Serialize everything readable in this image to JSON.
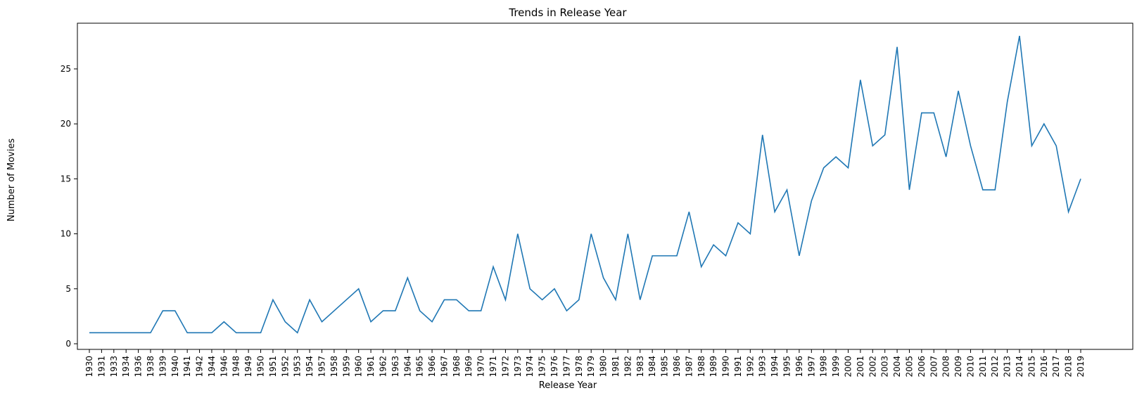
{
  "chart_data": {
    "type": "line",
    "title": "Trends in Release Year",
    "xlabel": "Release Year",
    "ylabel": "Number of Movies",
    "ylim": [
      0,
      29
    ],
    "yticks": [
      0,
      5,
      10,
      15,
      20,
      25
    ],
    "grid": false,
    "color": "#1f77b4",
    "categories": [
      "1930",
      "1931",
      "1933",
      "1934",
      "1936",
      "1938",
      "1939",
      "1940",
      "1941",
      "1942",
      "1944",
      "1946",
      "1948",
      "1949",
      "1950",
      "1951",
      "1952",
      "1953",
      "1954",
      "1957",
      "1958",
      "1959",
      "1960",
      "1961",
      "1962",
      "1963",
      "1964",
      "1965",
      "1966",
      "1967",
      "1968",
      "1969",
      "1970",
      "1971",
      "1972",
      "1973",
      "1974",
      "1975",
      "1976",
      "1977",
      "1978",
      "1979",
      "1980",
      "1981",
      "1982",
      "1983",
      "1984",
      "1985",
      "1986",
      "1987",
      "1988",
      "1989",
      "1990",
      "1991",
      "1992",
      "1993",
      "1994",
      "1995",
      "1996",
      "1997",
      "1998",
      "1999",
      "2000",
      "2001",
      "2002",
      "2003",
      "2004",
      "2005",
      "2006",
      "2007",
      "2008",
      "2009",
      "2010",
      "2011",
      "2012",
      "2013",
      "2014",
      "2015",
      "2016",
      "2017",
      "2018",
      "2019"
    ],
    "values": [
      1,
      1,
      1,
      1,
      1,
      1,
      3,
      3,
      1,
      1,
      1,
      2,
      1,
      1,
      1,
      4,
      2,
      1,
      4,
      2,
      3,
      4,
      5,
      2,
      3,
      3,
      6,
      3,
      2,
      4,
      4,
      3,
      3,
      7,
      4,
      10,
      5,
      4,
      5,
      3,
      4,
      10,
      6,
      4,
      10,
      4,
      8,
      8,
      8,
      12,
      7,
      9,
      8,
      11,
      10,
      19,
      12,
      14,
      8,
      13,
      16,
      17,
      16,
      24,
      18,
      19,
      27,
      14,
      21,
      21,
      17,
      23,
      18,
      14,
      14,
      22,
      28,
      18,
      20,
      18,
      12,
      15
    ]
  }
}
